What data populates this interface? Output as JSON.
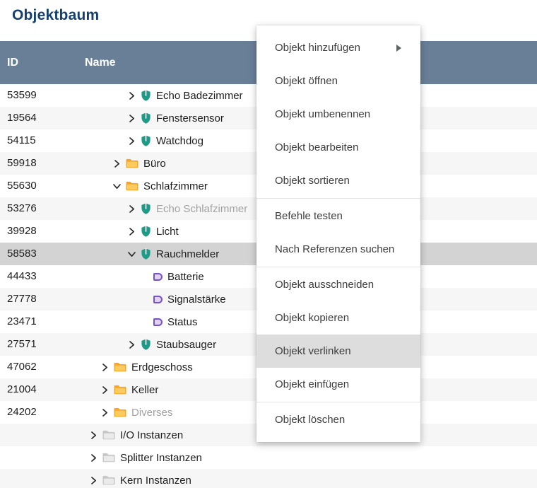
{
  "page": {
    "title": "Objektbaum"
  },
  "table": {
    "columns": {
      "id": "ID",
      "name": "Name"
    }
  },
  "rows": [
    {
      "id": "53599",
      "label": "Echo Badezimmer",
      "icon": "device",
      "chevron": "right",
      "indent": 180,
      "dim": false,
      "selected": false
    },
    {
      "id": "19564",
      "label": "Fenstersensor",
      "icon": "device",
      "chevron": "right",
      "indent": 180,
      "dim": false,
      "selected": false
    },
    {
      "id": "54115",
      "label": "Watchdog",
      "icon": "device",
      "chevron": "right",
      "indent": 180,
      "dim": false,
      "selected": false
    },
    {
      "id": "59918",
      "label": "Büro",
      "icon": "folder",
      "chevron": "right",
      "indent": 159,
      "dim": false,
      "selected": false
    },
    {
      "id": "55630",
      "label": "Schlafzimmer",
      "icon": "folder",
      "chevron": "down",
      "indent": 159,
      "dim": false,
      "selected": false
    },
    {
      "id": "53276",
      "label": "Echo Schlafzimmer",
      "icon": "device",
      "chevron": "right",
      "indent": 180,
      "dim": true,
      "selected": false
    },
    {
      "id": "39928",
      "label": "Licht",
      "icon": "device",
      "chevron": "right",
      "indent": 180,
      "dim": false,
      "selected": false
    },
    {
      "id": "58583",
      "label": "Rauchmelder",
      "icon": "device",
      "chevron": "down",
      "indent": 180,
      "dim": false,
      "selected": true
    },
    {
      "id": "44433",
      "label": "Batterie",
      "icon": "state",
      "chevron": "none",
      "indent": 198,
      "dim": false,
      "selected": false
    },
    {
      "id": "27778",
      "label": "Signalstärke",
      "icon": "state",
      "chevron": "none",
      "indent": 198,
      "dim": false,
      "selected": false
    },
    {
      "id": "23471",
      "label": "Status",
      "icon": "state",
      "chevron": "none",
      "indent": 198,
      "dim": false,
      "selected": false
    },
    {
      "id": "27571",
      "label": "Staubsauger",
      "icon": "device",
      "chevron": "right",
      "indent": 180,
      "dim": false,
      "selected": false
    },
    {
      "id": "47062",
      "label": "Erdgeschoss",
      "icon": "folder",
      "chevron": "right",
      "indent": 142,
      "dim": false,
      "selected": false
    },
    {
      "id": "21004",
      "label": "Keller",
      "icon": "folder",
      "chevron": "right",
      "indent": 142,
      "dim": false,
      "selected": false
    },
    {
      "id": "24202",
      "label": "Diverses",
      "icon": "folder",
      "chevron": "right",
      "indent": 142,
      "dim": true,
      "selected": false
    },
    {
      "id": "",
      "label": "I/O Instanzen",
      "icon": "folder-gray",
      "chevron": "right",
      "indent": 126,
      "dim": false,
      "selected": false
    },
    {
      "id": "",
      "label": "Splitter Instanzen",
      "icon": "folder-gray",
      "chevron": "right",
      "indent": 126,
      "dim": false,
      "selected": false
    },
    {
      "id": "",
      "label": "Kern Instanzen",
      "icon": "folder-gray",
      "chevron": "right",
      "indent": 126,
      "dim": false,
      "selected": false
    }
  ],
  "context_menu": {
    "groups": [
      [
        {
          "label": "Objekt hinzufügen",
          "submenu": true,
          "highlighted": false
        },
        {
          "label": "Objekt öffnen",
          "submenu": false,
          "highlighted": false
        },
        {
          "label": "Objekt umbenennen",
          "submenu": false,
          "highlighted": false
        },
        {
          "label": "Objekt bearbeiten",
          "submenu": false,
          "highlighted": false
        },
        {
          "label": "Objekt sortieren",
          "submenu": false,
          "highlighted": false
        }
      ],
      [
        {
          "label": "Befehle testen",
          "submenu": false,
          "highlighted": false
        },
        {
          "label": "Nach Referenzen suchen",
          "submenu": false,
          "highlighted": false
        }
      ],
      [
        {
          "label": "Objekt ausschneiden",
          "submenu": false,
          "highlighted": false
        },
        {
          "label": "Objekt kopieren",
          "submenu": false,
          "highlighted": false
        },
        {
          "label": "Objekt verlinken",
          "submenu": false,
          "highlighted": true
        },
        {
          "label": "Objekt einfügen",
          "submenu": false,
          "highlighted": false
        }
      ],
      [
        {
          "label": "Objekt löschen",
          "submenu": false,
          "highlighted": false
        }
      ]
    ]
  },
  "colors": {
    "header_bg": "#697f98",
    "title_text": "#15406e",
    "selected_row_bg": "#d3d3d3",
    "alt_row_bg": "#f6f6f6",
    "menu_highlight_bg": "#dddddd",
    "dim_text": "#a2a2a2",
    "device_icon": "#1d9b89",
    "folder_icon_back": "#f7a525",
    "folder_icon_front": "#fccb5f",
    "folder_gray_back": "#c6c6c6",
    "folder_gray_front": "#ebebeb",
    "state_icon_border": "#7a52c7",
    "state_icon_fill": "#ded2f5",
    "chevron": "#2a2a2a"
  }
}
